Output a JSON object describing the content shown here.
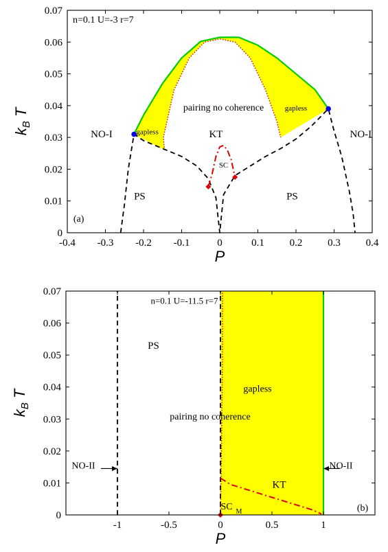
{
  "chart_data": [
    {
      "type": "line",
      "panel": "(a)",
      "params": "n=0.1 U=-3 r=7",
      "xlabel": "P",
      "ylabel": "k_B T",
      "xlim": [
        -0.4,
        0.4
      ],
      "ylim": [
        0,
        0.07
      ],
      "xticks": [
        "-0.4",
        "-0.3",
        "-0.2",
        "-0.1",
        "0",
        "0.1",
        "0.2",
        "0.3",
        "0.4"
      ],
      "yticks": [
        "0",
        "0.01",
        "0.02",
        "0.03",
        "0.04",
        "0.05",
        "0.06",
        "0.07"
      ],
      "grid": false,
      "series": [
        {
          "style": "green-solid",
          "color": "#00cc00",
          "x": [
            -0.225,
            -0.2,
            -0.15,
            -0.1,
            -0.05,
            0,
            0.05,
            0.1,
            0.15,
            0.2,
            0.25,
            0.285
          ],
          "y": [
            0.031,
            0.037,
            0.047,
            0.055,
            0.0602,
            0.0615,
            0.0615,
            0.059,
            0.055,
            0.05,
            0.045,
            0.039
          ]
        },
        {
          "style": "red-dotted",
          "color": "#cc0000",
          "x": [
            -0.145,
            -0.148,
            -0.12,
            -0.08,
            -0.04,
            0,
            0.04,
            0.08,
            0.12,
            0.15,
            0.16
          ],
          "y": [
            0.026,
            0.03,
            0.045,
            0.055,
            0.06,
            0.061,
            0.06,
            0.055,
            0.045,
            0.035,
            0.03
          ]
        },
        {
          "style": "black-dashed",
          "color": "#000000",
          "x": [
            -0.26,
            -0.25,
            -0.24,
            -0.225,
            -0.2,
            -0.15,
            -0.1,
            -0.06,
            -0.03,
            -0.01,
            0,
            0.01,
            0.04,
            0.08,
            0.12,
            0.16,
            0.2,
            0.24,
            0.285,
            0.3,
            0.32,
            0.34,
            0.35,
            0.355
          ],
          "y": [
            0,
            0.009,
            0.02,
            0.031,
            0.029,
            0.0265,
            0.024,
            0.021,
            0.017,
            0.011,
            0,
            0.012,
            0.018,
            0.021,
            0.024,
            0.0265,
            0.0295,
            0.0335,
            0.039,
            0.032,
            0.024,
            0.013,
            0.006,
            0
          ]
        },
        {
          "style": "red-dashdot",
          "color": "#dd0000",
          "x": [
            -0.03,
            -0.02,
            -0.01,
            0,
            0.01,
            0.02,
            0.03,
            0.04
          ],
          "y": [
            0.0145,
            0.0185,
            0.024,
            0.027,
            0.0275,
            0.026,
            0.023,
            0.0175
          ]
        }
      ],
      "points": [
        {
          "x": -0.225,
          "y": 0.031,
          "color": "#0000ee",
          "shape": "circle"
        },
        {
          "x": 0.285,
          "y": 0.039,
          "color": "#0000ee",
          "shape": "circle"
        },
        {
          "x": -0.03,
          "y": 0.0145,
          "color": "#dd0000",
          "shape": "diamond"
        },
        {
          "x": 0.04,
          "y": 0.0175,
          "color": "#dd0000",
          "shape": "diamond"
        }
      ],
      "fill_color": "#ffff00",
      "annotations": [
        {
          "text": "gapless",
          "x": -0.19,
          "y": 0.031,
          "size": 11
        },
        {
          "text": "gapless",
          "x": 0.2,
          "y": 0.0385,
          "size": 11
        },
        {
          "text": "pairing no coherence",
          "x": 0.01,
          "y": 0.0385,
          "size": 14
        },
        {
          "text": "NO-I",
          "x": -0.31,
          "y": 0.03,
          "size": 15
        },
        {
          "text": "KT",
          "x": -0.01,
          "y": 0.03,
          "size": 15
        },
        {
          "text": "SC",
          "x": 0.01,
          "y": 0.0205,
          "size": 11
        },
        {
          "text": "PS",
          "x": -0.21,
          "y": 0.0105,
          "size": 15
        },
        {
          "text": "PS",
          "x": 0.19,
          "y": 0.0105,
          "size": 15
        },
        {
          "text": "NO-I",
          "x": 0.37,
          "y": 0.03,
          "size": 15
        },
        {
          "text": "(a)",
          "x": -0.37,
          "y": 0.0035,
          "size": 14
        }
      ]
    },
    {
      "type": "line",
      "panel": "(b)",
      "params": "n=0.1 U=-11.5 r=7",
      "xlabel": "P",
      "ylabel": "k_B T",
      "xlim": [
        -1.5,
        1.5
      ],
      "ylim": [
        0,
        0.07
      ],
      "xticks": [
        "-1",
        "-0.5",
        "0",
        "0.5",
        "1"
      ],
      "yticks": [
        "0",
        "0.01",
        "0.02",
        "0.03",
        "0.04",
        "0.05",
        "0.06",
        "0.07"
      ],
      "grid": false,
      "fill_region": {
        "x": [
          0.0,
          1.0
        ],
        "y": [
          0,
          0.07
        ],
        "color": "#ffff00"
      },
      "series": [
        {
          "style": "black-dashed",
          "color": "#000000",
          "x": [
            -1,
            -1
          ],
          "y": [
            0,
            0.07
          ]
        },
        {
          "style": "black-dashed",
          "color": "#000000",
          "x": [
            0,
            0
          ],
          "y": [
            0,
            0.07
          ]
        },
        {
          "style": "green-solid",
          "color": "#00cc00",
          "x": [
            1,
            1
          ],
          "y": [
            0,
            0.07
          ]
        },
        {
          "style": "red-dotted",
          "color": "#cc0000",
          "x": [
            0,
            0.01,
            0.02,
            0.02
          ],
          "y": [
            0,
            0.02,
            0.05,
            0.07
          ]
        },
        {
          "style": "red-dashdot",
          "color": "#dd0000",
          "x": [
            0,
            0.1,
            0.3,
            0.5,
            0.7,
            0.9,
            0.98
          ],
          "y": [
            0.0115,
            0.0095,
            0.0075,
            0.0055,
            0.0035,
            0.0015,
            0.0003
          ]
        }
      ],
      "points": [
        {
          "x": 0,
          "y": 0,
          "color": "#dd0000",
          "shape": "diamond"
        }
      ],
      "annotations": [
        {
          "text": "n=0.1 U=-11.5 r=7",
          "x": -0.35,
          "y": 0.066,
          "size": 13
        },
        {
          "text": "PS",
          "x": -0.65,
          "y": 0.052,
          "size": 15
        },
        {
          "text": "gapless",
          "x": 0.36,
          "y": 0.0385,
          "size": 14
        },
        {
          "text": "pairing no coherence",
          "x": -0.1,
          "y": 0.0298,
          "size": 14
        },
        {
          "text": "NO-II",
          "x": -1.33,
          "y": 0.0145,
          "size": 14
        },
        {
          "text": "NO-II",
          "x": 1.17,
          "y": 0.0145,
          "size": 14
        },
        {
          "text": "KT",
          "x": 0.57,
          "y": 0.0085,
          "size": 15
        },
        {
          "text": "SC",
          "x": 0.06,
          "y": 0.0017,
          "size": 14
        },
        {
          "text": "M",
          "sub": true,
          "x": 0.18,
          "y": 0.0004,
          "size": 10
        },
        {
          "text": "(b)",
          "x": 1.38,
          "y": 0.0013,
          "size": 14
        }
      ],
      "arrows": [
        {
          "from": [
            -1.16,
            0.0145
          ],
          "to": [
            -1.0,
            0.0145
          ]
        },
        {
          "from": [
            1.16,
            0.0145
          ],
          "to": [
            1.0,
            0.0145
          ]
        }
      ]
    }
  ]
}
